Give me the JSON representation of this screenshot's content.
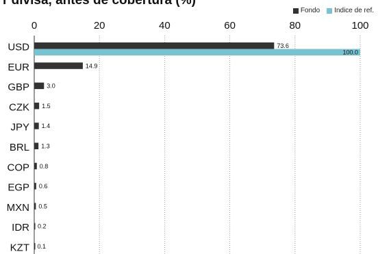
{
  "chart_data": {
    "type": "bar",
    "orientation": "horizontal",
    "title": "r divisa, antes de cobertura (%)",
    "categories": [
      "USD",
      "EUR",
      "GBP",
      "CZK",
      "JPY",
      "BRL",
      "COP",
      "EGP",
      "MXN",
      "IDR",
      "KZT"
    ],
    "series": [
      {
        "name": "Fondo",
        "color": "#333333",
        "values": [
          73.6,
          14.9,
          3.0,
          1.5,
          1.4,
          1.3,
          0.8,
          0.6,
          0.5,
          0.2,
          0.1
        ],
        "labels": [
          "73.6",
          "14.9",
          "3.0",
          "1.5",
          "1.4",
          "1.3",
          "0.8",
          "0.6",
          "0.5",
          "0.2",
          "0.1"
        ]
      },
      {
        "name": "Indice de ref.",
        "color": "#78c3d2",
        "values": [
          100.0,
          null,
          null,
          null,
          null,
          null,
          null,
          null,
          null,
          null,
          null
        ],
        "labels": [
          "100.0",
          null,
          null,
          null,
          null,
          null,
          null,
          null,
          null,
          null,
          null
        ]
      }
    ],
    "xlim": [
      0,
      100
    ],
    "xticks": [
      0,
      20,
      40,
      60,
      80,
      100
    ],
    "grid": true,
    "legend_position": "top-right"
  }
}
